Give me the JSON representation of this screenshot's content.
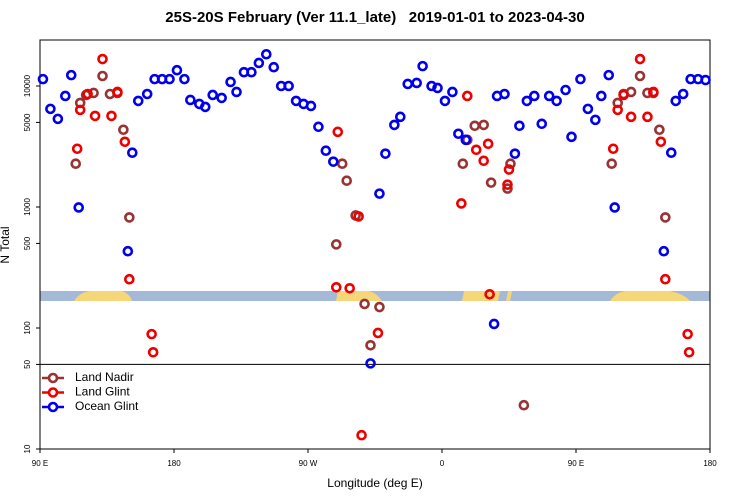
{
  "chart_data": {
    "type": "scatter",
    "title": "25S-20S February (Ver 11.1_late)   2019-01-01 to 2023-04-30",
    "x_label": "Longitude (deg E)",
    "y_label": "N Total",
    "y_scale": "log",
    "xlim": [
      90,
      540
    ],
    "ylim": [
      10,
      24000
    ],
    "xticks": [
      {
        "value": 90,
        "label": "90 E"
      },
      180,
      {
        "value": 270,
        "label": "90 W"
      },
      {
        "value": 360,
        "label": "0"
      },
      {
        "value": 450,
        "label": "90 E"
      },
      {
        "value": 540,
        "label": "180"
      }
    ],
    "yticks": [
      10,
      50,
      100,
      500,
      1000,
      5000,
      10000
    ],
    "reference_line": 50,
    "legend": "lower left",
    "series": [
      {
        "name": "Land Nadir",
        "color": "#993333",
        "x": [
          114,
          117,
          121,
          126,
          132,
          137,
          142,
          146,
          150,
          289,
          293,
          296,
          302,
          308,
          312,
          318,
          374,
          377,
          382,
          388,
          393,
          404,
          406,
          415,
          474,
          478,
          482,
          487,
          493,
          498,
          502,
          506,
          510
        ],
        "values": [
          2280,
          7250,
          8430,
          8760,
          12100,
          8590,
          8760,
          4350,
          820,
          491,
          2280,
          1650,
          851,
          158,
          72,
          149,
          2280,
          3590,
          4690,
          4770,
          1590,
          1420,
          2280,
          23,
          2280,
          7250,
          8590,
          8930,
          12100,
          8760,
          8760,
          4350,
          820
        ]
      },
      {
        "name": "Land Glint",
        "color": "#ee0000",
        "x": [
          115,
          117,
          122,
          127,
          132,
          138,
          142,
          147,
          150,
          165,
          166,
          289,
          290,
          298,
          304,
          306,
          317,
          373,
          377,
          383,
          388,
          391,
          392,
          404,
          405,
          475,
          478,
          482,
          487,
          493,
          498,
          502,
          507,
          510,
          525,
          526
        ],
        "values": [
          3030,
          6350,
          8590,
          5660,
          16700,
          5660,
          8930,
          3460,
          253,
          89,
          63,
          217,
          4180,
          213,
          836,
          13,
          91,
          1070,
          8270,
          2970,
          2410,
          3330,
          190,
          1530,
          2040,
          3030,
          6350,
          8430,
          5560,
          16700,
          5560,
          8930,
          3460,
          253,
          89,
          63
        ]
      },
      {
        "name": "Ocean Glint",
        "color": "#0000ee",
        "x": [
          92,
          97,
          102,
          107,
          111,
          116,
          149,
          152,
          156,
          162,
          167,
          172,
          177,
          182,
          187,
          191,
          197,
          201,
          206,
          212,
          218,
          222,
          227,
          232,
          237,
          242,
          247,
          252,
          257,
          262,
          267,
          272,
          277,
          282,
          287,
          312,
          318,
          322,
          328,
          332,
          337,
          343,
          347,
          353,
          357,
          362,
          367,
          371,
          376,
          395,
          397,
          402,
          409,
          412,
          417,
          422,
          427,
          432,
          437,
          443,
          447,
          453,
          458,
          463,
          467,
          472,
          476,
          509,
          514,
          517,
          522,
          527,
          532,
          537
        ],
        "values": [
          11400,
          6470,
          5350,
          8270,
          12300,
          991,
          431,
          2810,
          7530,
          8590,
          11400,
          11400,
          11400,
          13500,
          11400,
          7670,
          7110,
          6720,
          8430,
          7970,
          10800,
          8930,
          13000,
          13000,
          15500,
          18300,
          14300,
          10000,
          10000,
          7530,
          7110,
          6840,
          4600,
          2920,
          2370,
          51,
          1290,
          2760,
          4770,
          5560,
          10400,
          10600,
          14600,
          10000,
          9630,
          7530,
          8930,
          4030,
          3590,
          108,
          8270,
          8590,
          2760,
          4690,
          7530,
          8270,
          4870,
          8270,
          7530,
          9270,
          3800,
          11400,
          6470,
          5250,
          8270,
          12300,
          991,
          431,
          2810,
          7530,
          8590,
          11400,
          11400,
          11200
        ]
      }
    ]
  }
}
